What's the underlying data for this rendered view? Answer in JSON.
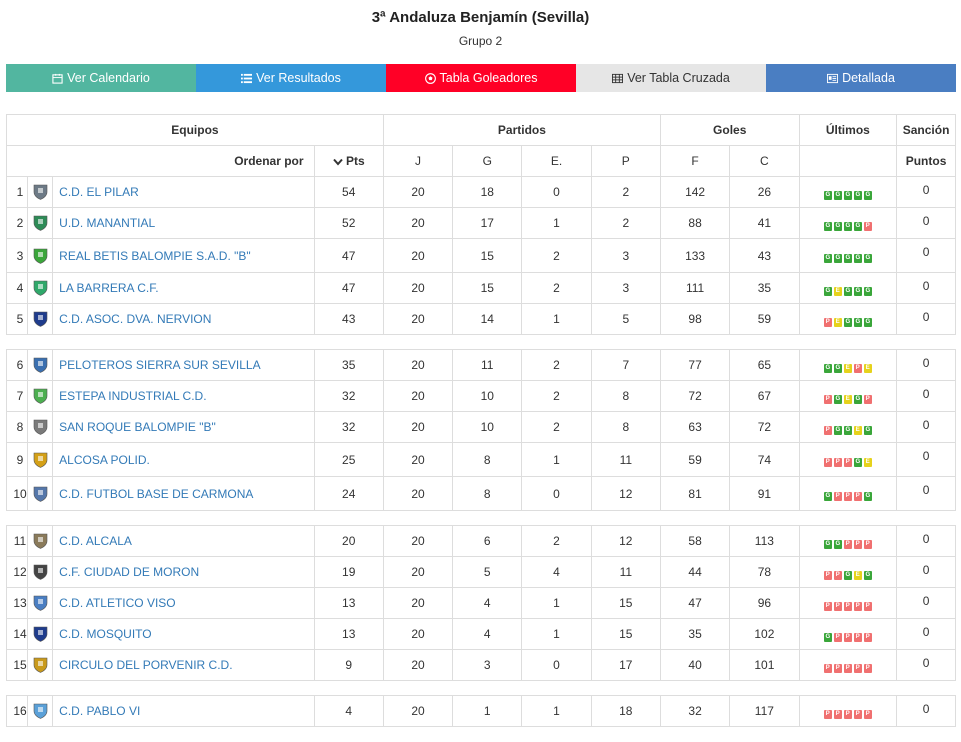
{
  "header": {
    "title": "3ª Andaluza Benjamín (Sevilla)",
    "subtitle": "Grupo 2"
  },
  "buttons": [
    {
      "label": "Ver Calendario",
      "icon": "calendar-icon",
      "bg": "#52b6a0",
      "fg": "#ffffff"
    },
    {
      "label": "Ver Resultados",
      "icon": "list-icon",
      "bg": "#3498db",
      "fg": "#ffffff"
    },
    {
      "label": "Tabla Goleadores",
      "icon": "soccer-ball-icon",
      "bg": "#ff0026",
      "fg": "#ffffff"
    },
    {
      "label": "Ver Tabla Cruzada",
      "icon": "grid-table-icon",
      "bg": "#e6e6e6",
      "fg": "#333333"
    },
    {
      "label": "Detallada",
      "icon": "id-card-icon",
      "bg": "#4a7ec2",
      "fg": "#ffffff"
    }
  ],
  "table": {
    "groups": {
      "teams": "Equipos",
      "matches": "Partidos",
      "goals": "Goles",
      "last": "Últimos",
      "sanction": "Sanción"
    },
    "cols": {
      "sort_label": "Ordenar por",
      "pts": "Pts",
      "j": "J",
      "g": "G",
      "e": "E.",
      "p": "P",
      "f": "F",
      "c": "C",
      "points": "Puntos"
    },
    "rows": [
      {
        "pos": "1",
        "team": "C.D. EL PILAR",
        "pts": "54",
        "j": "20",
        "g": "18",
        "e": "0",
        "p": "2",
        "f": "142",
        "c": "26",
        "last": "GGGGG",
        "sanc": "0",
        "color": "#6d7a86"
      },
      {
        "pos": "2",
        "team": "U.D. MANANTIAL",
        "pts": "52",
        "j": "20",
        "g": "17",
        "e": "1",
        "p": "2",
        "f": "88",
        "c": "41",
        "last": "GGGGP",
        "sanc": "0",
        "color": "#2e8b57"
      },
      {
        "pos": "3",
        "team": "REAL BETIS BALOMPIE S.A.D. \"B\"",
        "pts": "47",
        "j": "20",
        "g": "15",
        "e": "2",
        "p": "3",
        "f": "133",
        "c": "43",
        "last": "GGGGG",
        "sanc": "0",
        "color": "#3aa63a"
      },
      {
        "pos": "4",
        "team": "LA BARRERA C.F.",
        "pts": "47",
        "j": "20",
        "g": "15",
        "e": "2",
        "p": "3",
        "f": "111",
        "c": "35",
        "last": "GEGGG",
        "sanc": "0",
        "color": "#2fa86a"
      },
      {
        "pos": "5",
        "team": "C.D. ASOC. DVA. NERVION",
        "pts": "43",
        "j": "20",
        "g": "14",
        "e": "1",
        "p": "5",
        "f": "98",
        "c": "59",
        "last": "PEGGG",
        "sanc": "0",
        "color": "#1f3c8c"
      },
      {
        "pos": "6",
        "team": "PELOTEROS SIERRA SUR SEVILLA",
        "pts": "35",
        "j": "20",
        "g": "11",
        "e": "2",
        "p": "7",
        "f": "77",
        "c": "65",
        "last": "GGEPE",
        "sanc": "0",
        "color": "#3a6fb0"
      },
      {
        "pos": "7",
        "team": "ESTEPA INDUSTRIAL C.D.",
        "pts": "32",
        "j": "20",
        "g": "10",
        "e": "2",
        "p": "8",
        "f": "72",
        "c": "67",
        "last": "PGEGP",
        "sanc": "0",
        "color": "#4caf50"
      },
      {
        "pos": "8",
        "team": "SAN ROQUE BALOMPIE \"B\"",
        "pts": "32",
        "j": "20",
        "g": "10",
        "e": "2",
        "p": "8",
        "f": "63",
        "c": "72",
        "last": "PGGEG",
        "sanc": "0",
        "color": "#7a7a7a"
      },
      {
        "pos": "9",
        "team": "ALCOSA POLID.",
        "pts": "25",
        "j": "20",
        "g": "8",
        "e": "1",
        "p": "11",
        "f": "59",
        "c": "74",
        "last": "PPPGE",
        "sanc": "0",
        "color": "#d4a017"
      },
      {
        "pos": "10",
        "team": "C.D. FUTBOL BASE DE CARMONA",
        "pts": "24",
        "j": "20",
        "g": "8",
        "e": "0",
        "p": "12",
        "f": "81",
        "c": "91",
        "last": "GPPPG",
        "sanc": "0",
        "color": "#5577aa"
      },
      {
        "pos": "11",
        "team": "C.D. ALCALA",
        "pts": "20",
        "j": "20",
        "g": "6",
        "e": "2",
        "p": "12",
        "f": "58",
        "c": "113",
        "last": "GGPPP",
        "sanc": "0",
        "color": "#8a7a5a"
      },
      {
        "pos": "12",
        "team": "C.F. CIUDAD DE MORON",
        "pts": "19",
        "j": "20",
        "g": "5",
        "e": "4",
        "p": "11",
        "f": "44",
        "c": "78",
        "last": "PPGEG",
        "sanc": "0",
        "color": "#444444"
      },
      {
        "pos": "13",
        "team": "C.D. ATLETICO VISO",
        "pts": "13",
        "j": "20",
        "g": "4",
        "e": "1",
        "p": "15",
        "f": "47",
        "c": "96",
        "last": "PPPPP",
        "sanc": "0",
        "color": "#4a7ec2"
      },
      {
        "pos": "14",
        "team": "C.D. MOSQUITO",
        "pts": "13",
        "j": "20",
        "g": "4",
        "e": "1",
        "p": "15",
        "f": "35",
        "c": "102",
        "last": "GPPPP",
        "sanc": "0",
        "color": "#1f3c8c"
      },
      {
        "pos": "15",
        "team": "CIRCULO DEL PORVENIR C.D.",
        "pts": "9",
        "j": "20",
        "g": "3",
        "e": "0",
        "p": "17",
        "f": "40",
        "c": "101",
        "last": "PPPPP",
        "sanc": "0",
        "color": "#c99a1c"
      },
      {
        "pos": "16",
        "team": "C.D. PABLO VI",
        "pts": "4",
        "j": "20",
        "g": "1",
        "e": "1",
        "p": "18",
        "f": "32",
        "c": "117",
        "last": "PPPPP",
        "sanc": "0",
        "color": "#5aa0d8"
      }
    ],
    "separator_after": [
      "5",
      "10",
      "15"
    ]
  }
}
